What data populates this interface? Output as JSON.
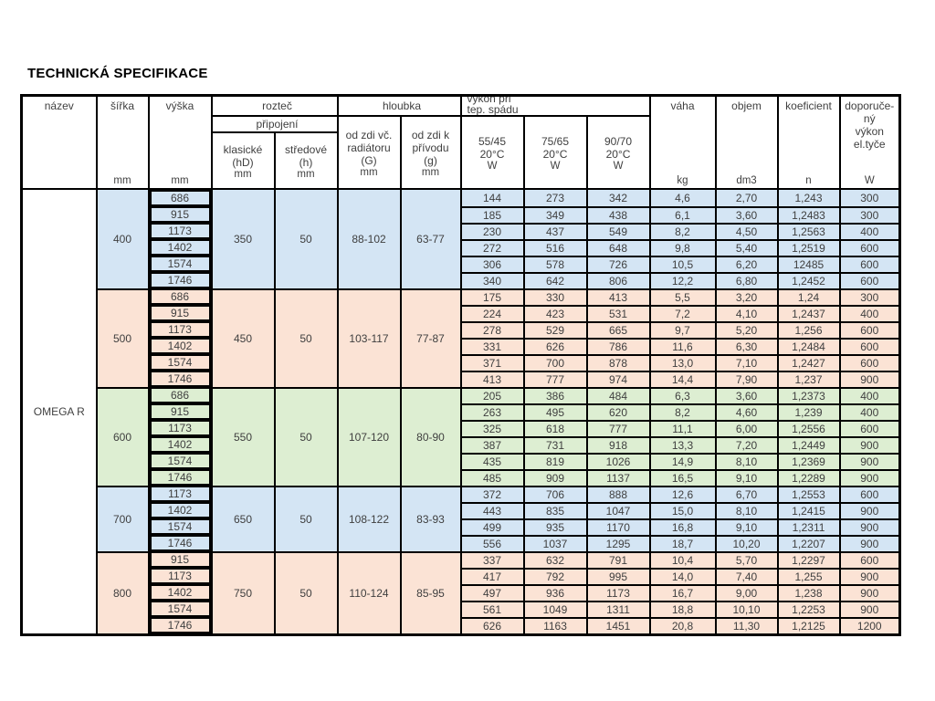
{
  "page": {
    "title": "TECHNICKÁ SPECIFIKACE"
  },
  "colors": {
    "blue": "#d4e5f4",
    "peach": "#fbe3d5",
    "green": "#ddeed2"
  },
  "table": {
    "header": {
      "nazev": "název",
      "sirka": "šířka",
      "vyska": "výška",
      "roztec": "rozteč",
      "pripojeni": "připojení",
      "klasicke": "klasické",
      "klasicke_sub": "(hD)",
      "stredove": "středové",
      "stredove_sub": "(h)",
      "hloubka": "hloubka",
      "depth_rad_l1": "od zdi vč.",
      "depth_rad_l2": "radiátoru",
      "depth_rad_sub": "(G)",
      "depth_sup_l1": "od zdi k",
      "depth_sup_l2": "přívodu",
      "depth_sup_sub": "(g)",
      "vykon_l1": "výkon při",
      "vykon_l2": "tep. spádu",
      "temp1": "55/45",
      "temp2": "75/65",
      "temp3": "90/70",
      "temp_deg": "20°C",
      "vaha": "váha",
      "objem": "objem",
      "koeficient": "koeficient",
      "dop_l1": "doporuče-",
      "dop_l2": "ný",
      "dop_l3": "výkon",
      "dop_l4": "el.tyče",
      "unit_mm": "mm",
      "unit_w": "W",
      "unit_kg": "kg",
      "unit_dm3": "dm3",
      "unit_n": "n"
    },
    "product": "OMEGA R",
    "groups": [
      {
        "width": "400",
        "color": "blue",
        "pitch_classic": "350",
        "pitch_center": "50",
        "depth_radiator": "88-102",
        "depth_supply": "63-77",
        "rows": [
          {
            "height": "686",
            "w5545": "144",
            "w7565": "273",
            "w9070": "342",
            "weight": "4,6",
            "volume": "2,70",
            "coef": "1,243",
            "el": "300"
          },
          {
            "height": "915",
            "w5545": "185",
            "w7565": "349",
            "w9070": "438",
            "weight": "6,1",
            "volume": "3,60",
            "coef": "1,2483",
            "el": "300"
          },
          {
            "height": "1173",
            "w5545": "230",
            "w7565": "437",
            "w9070": "549",
            "weight": "8,2",
            "volume": "4,50",
            "coef": "1,2563",
            "el": "400"
          },
          {
            "height": "1402",
            "w5545": "272",
            "w7565": "516",
            "w9070": "648",
            "weight": "9,8",
            "volume": "5,40",
            "coef": "1,2519",
            "el": "600"
          },
          {
            "height": "1574",
            "w5545": "306",
            "w7565": "578",
            "w9070": "726",
            "weight": "10,5",
            "volume": "6,20",
            "coef": "12485",
            "el": "600"
          },
          {
            "height": "1746",
            "w5545": "340",
            "w7565": "642",
            "w9070": "806",
            "weight": "12,2",
            "volume": "6,80",
            "coef": "1,2452",
            "el": "600"
          }
        ]
      },
      {
        "width": "500",
        "color": "peach",
        "pitch_classic": "450",
        "pitch_center": "50",
        "depth_radiator": "103-117",
        "depth_supply": "77-87",
        "rows": [
          {
            "height": "686",
            "w5545": "175",
            "w7565": "330",
            "w9070": "413",
            "weight": "5,5",
            "volume": "3,20",
            "coef": "1,24",
            "el": "300"
          },
          {
            "height": "915",
            "w5545": "224",
            "w7565": "423",
            "w9070": "531",
            "weight": "7,2",
            "volume": "4,10",
            "coef": "1,2437",
            "el": "400"
          },
          {
            "height": "1173",
            "w5545": "278",
            "w7565": "529",
            "w9070": "665",
            "weight": "9,7",
            "volume": "5,20",
            "coef": "1,256",
            "el": "600"
          },
          {
            "height": "1402",
            "w5545": "331",
            "w7565": "626",
            "w9070": "786",
            "weight": "11,6",
            "volume": "6,30",
            "coef": "1,2484",
            "el": "600"
          },
          {
            "height": "1574",
            "w5545": "371",
            "w7565": "700",
            "w9070": "878",
            "weight": "13,0",
            "volume": "7,10",
            "coef": "1,2427",
            "el": "600"
          },
          {
            "height": "1746",
            "w5545": "413",
            "w7565": "777",
            "w9070": "974",
            "weight": "14,4",
            "volume": "7,90",
            "coef": "1,237",
            "el": "900"
          }
        ]
      },
      {
        "width": "600",
        "color": "green",
        "pitch_classic": "550",
        "pitch_center": "50",
        "depth_radiator": "107-120",
        "depth_supply": "80-90",
        "rows": [
          {
            "height": "686",
            "w5545": "205",
            "w7565": "386",
            "w9070": "484",
            "weight": "6,3",
            "volume": "3,60",
            "coef": "1,2373",
            "el": "400"
          },
          {
            "height": "915",
            "w5545": "263",
            "w7565": "495",
            "w9070": "620",
            "weight": "8,2",
            "volume": "4,60",
            "coef": "1,239",
            "el": "400"
          },
          {
            "height": "1173",
            "w5545": "325",
            "w7565": "618",
            "w9070": "777",
            "weight": "11,1",
            "volume": "6,00",
            "coef": "1,2556",
            "el": "600"
          },
          {
            "height": "1402",
            "w5545": "387",
            "w7565": "731",
            "w9070": "918",
            "weight": "13,3",
            "volume": "7,20",
            "coef": "1,2449",
            "el": "900"
          },
          {
            "height": "1574",
            "w5545": "435",
            "w7565": "819",
            "w9070": "1026",
            "weight": "14,9",
            "volume": "8,10",
            "coef": "1,2369",
            "el": "900"
          },
          {
            "height": "1746",
            "w5545": "485",
            "w7565": "909",
            "w9070": "1137",
            "weight": "16,5",
            "volume": "9,10",
            "coef": "1,2289",
            "el": "900"
          }
        ]
      },
      {
        "width": "700",
        "color": "blue",
        "pitch_classic": "650",
        "pitch_center": "50",
        "depth_radiator": "108-122",
        "depth_supply": "83-93",
        "rows": [
          {
            "height": "1173",
            "w5545": "372",
            "w7565": "706",
            "w9070": "888",
            "weight": "12,6",
            "volume": "6,70",
            "coef": "1,2553",
            "el": "600"
          },
          {
            "height": "1402",
            "w5545": "443",
            "w7565": "835",
            "w9070": "1047",
            "weight": "15,0",
            "volume": "8,10",
            "coef": "1,2415",
            "el": "900"
          },
          {
            "height": "1574",
            "w5545": "499",
            "w7565": "935",
            "w9070": "1170",
            "weight": "16,8",
            "volume": "9,10",
            "coef": "1,2311",
            "el": "900"
          },
          {
            "height": "1746",
            "w5545": "556",
            "w7565": "1037",
            "w9070": "1295",
            "weight": "18,7",
            "volume": "10,20",
            "coef": "1,2207",
            "el": "900"
          }
        ]
      },
      {
        "width": "800",
        "color": "peach",
        "pitch_classic": "750",
        "pitch_center": "50",
        "depth_radiator": "110-124",
        "depth_supply": "85-95",
        "rows": [
          {
            "height": "915",
            "w5545": "337",
            "w7565": "632",
            "w9070": "791",
            "weight": "10,4",
            "volume": "5,70",
            "coef": "1,2297",
            "el": "600"
          },
          {
            "height": "1173",
            "w5545": "417",
            "w7565": "792",
            "w9070": "995",
            "weight": "14,0",
            "volume": "7,40",
            "coef": "1,255",
            "el": "900"
          },
          {
            "height": "1402",
            "w5545": "497",
            "w7565": "936",
            "w9070": "1173",
            "weight": "16,7",
            "volume": "9,00",
            "coef": "1,238",
            "el": "900"
          },
          {
            "height": "1574",
            "w5545": "561",
            "w7565": "1049",
            "w9070": "1311",
            "weight": "18,8",
            "volume": "10,10",
            "coef": "1,2253",
            "el": "900"
          },
          {
            "height": "1746",
            "w5545": "626",
            "w7565": "1163",
            "w9070": "1451",
            "weight": "20,8",
            "volume": "11,30",
            "coef": "1,2125",
            "el": "1200"
          }
        ]
      }
    ]
  }
}
